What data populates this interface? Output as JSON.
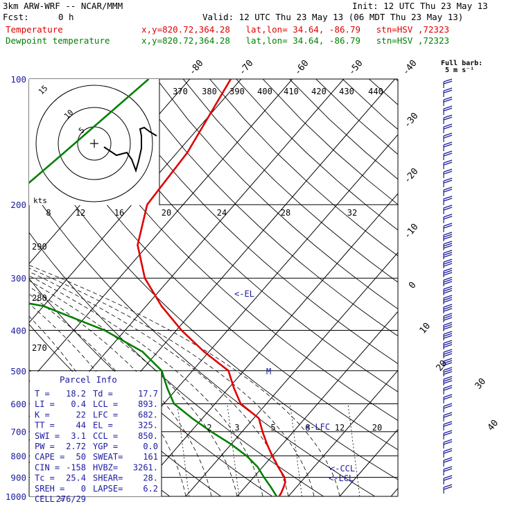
{
  "header": {
    "model": "3km ARW-WRF -- NCAR/MMM",
    "init": "Init: 12 UTC Thu 23 May 13",
    "fcst_label": "Fcst:",
    "fcst_value": "0 h",
    "valid": "Valid: 12 UTC Thu 23 May 13 (06 MDT Thu 23 May 13)",
    "temp_label": "Temperature",
    "dew_label": "Dewpoint temperature",
    "location": "x,y=820.72,364.28   lat,lon= 34.64, -86.79   stn=HSV ,72323"
  },
  "barb_key": {
    "title": "Full barb:",
    "value": "5 m s⁻¹"
  },
  "hodograph": {
    "units": "kts",
    "ring_labels": [
      "5",
      "10",
      "15"
    ]
  },
  "parcel_info": {
    "title": "Parcel Info",
    "rows": [
      [
        "T  =",
        "18.2",
        "Td =",
        "17.7"
      ],
      [
        "LI =",
        "0.4",
        "LCL =",
        "893."
      ],
      [
        "K  =",
        "22",
        "LFC =",
        "682."
      ],
      [
        "TT =",
        "44",
        "EL  =",
        "325."
      ],
      [
        "SWI =",
        "3.1",
        "CCL =",
        "850."
      ],
      [
        "PW =",
        "2.72",
        "YGP =",
        "0.0"
      ],
      [
        "CAPE =",
        "50",
        "SWEAT=",
        "161"
      ],
      [
        "CIN =",
        "-158",
        "HVBZ=",
        "3261."
      ],
      [
        "Tc =",
        "25.4",
        "SHEAR=",
        "28."
      ],
      [
        "SREH =",
        "0",
        "LAPSE=",
        "6.2"
      ],
      [
        "CELL =",
        "276/29",
        "",
        ""
      ]
    ]
  },
  "colors": {
    "temperature": "#e00000",
    "dewpoint": "#008000",
    "skew": "#000000",
    "text_blue": "#1a1aa0"
  },
  "chart_data": {
    "type": "line",
    "title": "",
    "pressure_levels": [
      100,
      200,
      300,
      400,
      500,
      600,
      700,
      800,
      900,
      1000
    ],
    "pressure_labels": [
      "100",
      "200",
      "300",
      "400",
      "500",
      "600",
      "700",
      "800",
      "900",
      "1000"
    ],
    "isotherm_labels_top": [
      "-80",
      "-70",
      "-60",
      "-50",
      "-40"
    ],
    "isotherm_labels_right": [
      "-30",
      "-20",
      "-10",
      "0",
      "10",
      "20",
      "30",
      "40"
    ],
    "theta_labels": [
      "370",
      "380",
      "390",
      "400",
      "410",
      "420",
      "430",
      "440"
    ],
    "mixing_ratio_labels": [
      "8",
      "12",
      "16",
      "20",
      "24",
      "28",
      "32"
    ],
    "mixing_ratio_labels_low": [
      "2",
      "3",
      "5",
      "8",
      "12",
      "20"
    ],
    "thetae_labels": [
      "290",
      "280",
      "270"
    ],
    "level_annotations": [
      "<-EL",
      "<-LFC",
      "<-CCL",
      "<-LCL"
    ],
    "series": [
      {
        "name": "Temperature",
        "points": [
          [
            100,
            -62
          ],
          [
            150,
            -58
          ],
          [
            200,
            -57
          ],
          [
            250,
            -52
          ],
          [
            300,
            -45
          ],
          [
            350,
            -37
          ],
          [
            400,
            -29
          ],
          [
            450,
            -21
          ],
          [
            500,
            -13
          ],
          [
            550,
            -9
          ],
          [
            600,
            -5
          ],
          [
            650,
            1
          ],
          [
            700,
            4
          ],
          [
            750,
            7
          ],
          [
            800,
            10
          ],
          [
            850,
            13
          ],
          [
            900,
            16
          ],
          [
            925,
            17
          ],
          [
            950,
            17.5
          ],
          [
            980,
            18
          ],
          [
            1000,
            18.2
          ]
        ]
      },
      {
        "name": "Dewpoint temperature",
        "points": [
          [
            100,
            -78
          ],
          [
            150,
            -82
          ],
          [
            200,
            -85
          ],
          [
            250,
            -87
          ],
          [
            300,
            -95
          ],
          [
            350,
            -60
          ],
          [
            400,
            -44
          ],
          [
            450,
            -33
          ],
          [
            500,
            -26
          ],
          [
            550,
            -22
          ],
          [
            600,
            -18
          ],
          [
            650,
            -12
          ],
          [
            700,
            -6
          ],
          [
            750,
            0
          ],
          [
            800,
            5
          ],
          [
            850,
            9
          ],
          [
            900,
            12
          ],
          [
            950,
            15
          ],
          [
            1000,
            17.7
          ]
        ]
      }
    ]
  }
}
